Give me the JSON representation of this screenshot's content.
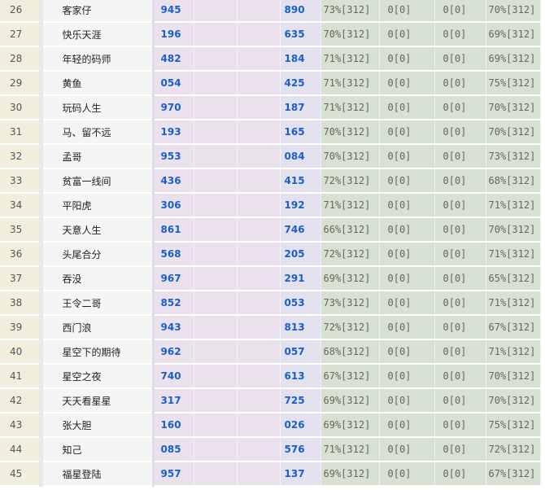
{
  "rows": [
    {
      "no": "26",
      "name": "客家仔",
      "a": "945",
      "b": "890",
      "c": "73%[312]",
      "d": "0[0]",
      "e": "0[0]",
      "f": "70%[312]"
    },
    {
      "no": "27",
      "name": "快乐天涯",
      "a": "196",
      "b": "635",
      "c": "70%[312]",
      "d": "0[0]",
      "e": "0[0]",
      "f": "69%[312]"
    },
    {
      "no": "28",
      "name": "年轻的码师",
      "a": "482",
      "b": "184",
      "c": "71%[312]",
      "d": "0[0]",
      "e": "0[0]",
      "f": "69%[312]"
    },
    {
      "no": "29",
      "name": "黄鱼",
      "a": "054",
      "b": "425",
      "c": "71%[312]",
      "d": "0[0]",
      "e": "0[0]",
      "f": "75%[312]"
    },
    {
      "no": "30",
      "name": "玩码人生",
      "a": "970",
      "b": "187",
      "c": "71%[312]",
      "d": "0[0]",
      "e": "0[0]",
      "f": "70%[312]"
    },
    {
      "no": "31",
      "name": "马、留不远",
      "a": "193",
      "b": "165",
      "c": "70%[312]",
      "d": "0[0]",
      "e": "0[0]",
      "f": "70%[312]"
    },
    {
      "no": "32",
      "name": "孟哥",
      "a": "953",
      "b": "084",
      "c": "70%[312]",
      "d": "0[0]",
      "e": "0[0]",
      "f": "73%[312]"
    },
    {
      "no": "33",
      "name": "贫富一线间",
      "a": "436",
      "b": "415",
      "c": "72%[312]",
      "d": "0[0]",
      "e": "0[0]",
      "f": "68%[312]"
    },
    {
      "no": "34",
      "name": "平阳虎",
      "a": "306",
      "b": "192",
      "c": "71%[312]",
      "d": "0[0]",
      "e": "0[0]",
      "f": "71%[312]"
    },
    {
      "no": "35",
      "name": "天意人生",
      "a": "861",
      "b": "746",
      "c": "66%[312]",
      "d": "0[0]",
      "e": "0[0]",
      "f": "70%[312]"
    },
    {
      "no": "36",
      "name": "头尾合分",
      "a": "568",
      "b": "205",
      "c": "72%[312]",
      "d": "0[0]",
      "e": "0[0]",
      "f": "71%[312]"
    },
    {
      "no": "37",
      "name": "吞没",
      "a": "967",
      "b": "291",
      "c": "69%[312]",
      "d": "0[0]",
      "e": "0[0]",
      "f": "65%[312]"
    },
    {
      "no": "38",
      "name": "王令二哥",
      "a": "852",
      "b": "053",
      "c": "73%[312]",
      "d": "0[0]",
      "e": "0[0]",
      "f": "71%[312]"
    },
    {
      "no": "39",
      "name": "西门浪",
      "a": "943",
      "b": "813",
      "c": "72%[312]",
      "d": "0[0]",
      "e": "0[0]",
      "f": "67%[312]"
    },
    {
      "no": "40",
      "name": "星空下的期待",
      "a": "962",
      "b": "057",
      "c": "68%[312]",
      "d": "0[0]",
      "e": "0[0]",
      "f": "71%[312]"
    },
    {
      "no": "41",
      "name": "星空之夜",
      "a": "740",
      "b": "613",
      "c": "67%[312]",
      "d": "0[0]",
      "e": "0[0]",
      "f": "70%[312]"
    },
    {
      "no": "42",
      "name": "天天看星星",
      "a": "317",
      "b": "725",
      "c": "69%[312]",
      "d": "0[0]",
      "e": "0[0]",
      "f": "70%[312]"
    },
    {
      "no": "43",
      "name": "张大胆",
      "a": "160",
      "b": "026",
      "c": "69%[312]",
      "d": "0[0]",
      "e": "0[0]",
      "f": "75%[312]"
    },
    {
      "no": "44",
      "name": "知己",
      "a": "085",
      "b": "576",
      "c": "71%[312]",
      "d": "0[0]",
      "e": "0[0]",
      "f": "72%[312]"
    },
    {
      "no": "45",
      "name": "福星登陆",
      "a": "957",
      "b": "137",
      "c": "69%[312]",
      "d": "0[0]",
      "e": "0[0]",
      "f": "67%[312]"
    }
  ]
}
